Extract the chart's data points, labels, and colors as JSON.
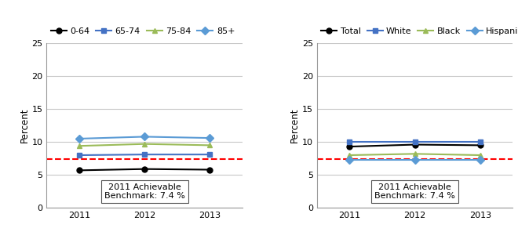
{
  "years": [
    2011,
    2012,
    2013
  ],
  "left": {
    "series": [
      {
        "label": "0-64",
        "color": "#000000",
        "marker": "o",
        "values": [
          5.7,
          5.9,
          5.8
        ]
      },
      {
        "label": "65-74",
        "color": "#4472C4",
        "marker": "s",
        "values": [
          8.0,
          8.1,
          8.1
        ]
      },
      {
        "label": "75-84",
        "color": "#9BBB59",
        "marker": "^",
        "values": [
          9.4,
          9.7,
          9.5
        ]
      },
      {
        "label": "85+",
        "color": "#5B9BD5",
        "marker": "D",
        "values": [
          10.5,
          10.8,
          10.6
        ]
      }
    ]
  },
  "right": {
    "series": [
      {
        "label": "Total",
        "color": "#000000",
        "marker": "o",
        "values": [
          9.3,
          9.6,
          9.5
        ]
      },
      {
        "label": "White",
        "color": "#4472C4",
        "marker": "s",
        "values": [
          10.0,
          10.0,
          10.0
        ]
      },
      {
        "label": "Black",
        "color": "#9BBB59",
        "marker": "^",
        "values": [
          8.0,
          8.2,
          8.0
        ]
      },
      {
        "label": "Hispanic",
        "color": "#5B9BD5",
        "marker": "D",
        "values": [
          7.3,
          7.3,
          7.3
        ]
      }
    ]
  },
  "benchmark": 7.4,
  "benchmark_label": "2011 Achievable\nBenchmark: 7.4 %",
  "ylabel": "Percent",
  "ylim": [
    0,
    25
  ],
  "yticks": [
    0,
    5,
    10,
    15,
    20,
    25
  ],
  "xlim": [
    2010.5,
    2013.5
  ],
  "background_color": "#ffffff",
  "grid_color": "#c8c8c8",
  "benchmark_color": "#FF0000",
  "line_width": 1.5,
  "marker_size": 5,
  "font_size": 8,
  "legend_font_size": 8,
  "tick_font_size": 8,
  "ylabel_font_size": 8.5
}
